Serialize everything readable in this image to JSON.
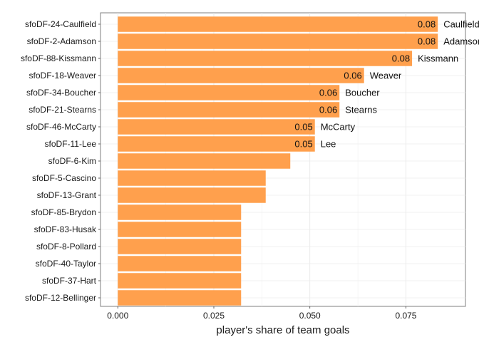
{
  "chart_data": {
    "type": "bar",
    "orientation": "horizontal",
    "title": "",
    "xlabel": "player's share of team goals",
    "ylabel": "",
    "xlim": [
      -0.0045,
      0.0905
    ],
    "x_ticks": [
      0.0,
      0.025,
      0.05,
      0.075
    ],
    "x_tick_labels": [
      "0.000",
      "0.025",
      "0.050",
      "0.075"
    ],
    "grid": true,
    "bar_color": "#ffa04d",
    "categories": [
      "sfoDF-24-Caulfield",
      "sfoDF-2-Adamson",
      "sfoDF-88-Kissmann",
      "sfoDF-18-Weaver",
      "sfoDF-34-Boucher",
      "sfoDF-21-Stearns",
      "sfoDF-46-McCarty",
      "sfoDF-11-Lee",
      "sfoDF-6-Kim",
      "sfoDF-5-Cascino",
      "sfoDF-13-Grant",
      "sfoDF-85-Brydon",
      "sfoDF-83-Husak",
      "sfoDF-8-Pollard",
      "sfoDF-40-Taylor",
      "sfoDF-37-Hart",
      "sfoDF-12-Bellinger"
    ],
    "values": [
      0.0833,
      0.0833,
      0.0766,
      0.0641,
      0.0577,
      0.0577,
      0.0513,
      0.0513,
      0.0449,
      0.0385,
      0.0385,
      0.0321,
      0.0321,
      0.0321,
      0.0321,
      0.0321,
      0.0321
    ],
    "value_labels": [
      "0.08",
      "0.08",
      "0.08",
      "0.06",
      "0.06",
      "0.06",
      "0.05",
      "0.05",
      "",
      "",
      "",
      "",
      "",
      "",
      "",
      "",
      ""
    ],
    "name_labels": [
      "Caulfield",
      "Adamson",
      "Kissmann",
      "Weaver",
      "Boucher",
      "Stearns",
      "McCarty",
      "Lee",
      "",
      "",
      "",
      "",
      "",
      "",
      "",
      "",
      ""
    ]
  }
}
